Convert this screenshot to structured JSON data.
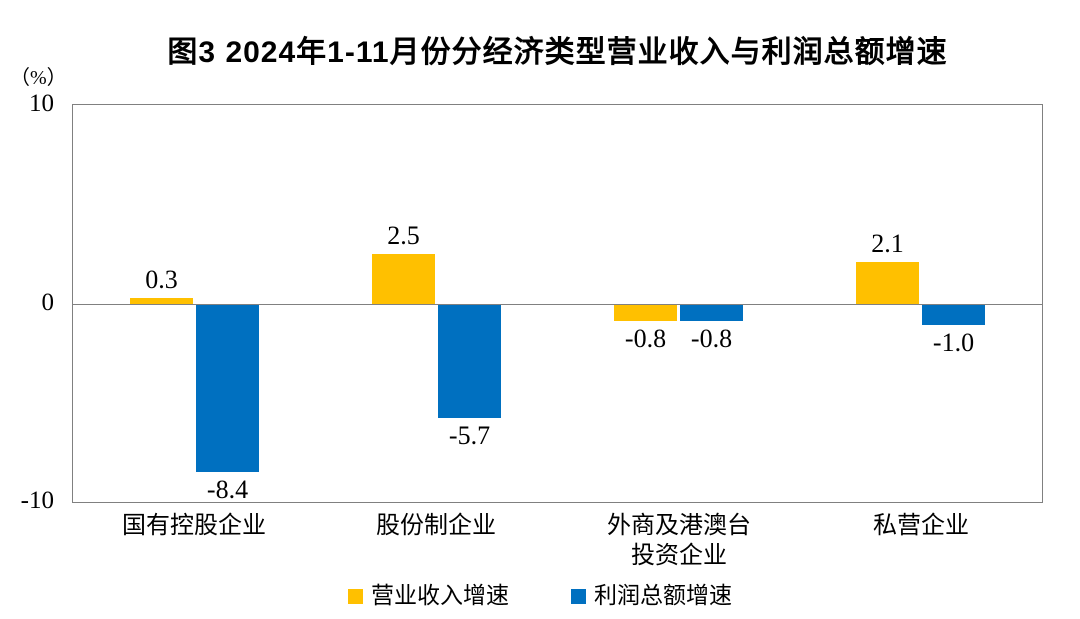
{
  "chart_data": {
    "type": "bar",
    "title": "图3 2024年1-11月份分经济类型营业收入与利润总额增速",
    "unit_label": "（%）",
    "categories": [
      "国有控股企业",
      "股份制企业",
      "外商及港澳台投资企业",
      "私营企业"
    ],
    "categories_display": [
      [
        "国有控股企业"
      ],
      [
        "股份制企业"
      ],
      [
        "外商及港澳台",
        "投资企业"
      ],
      [
        "私营企业"
      ]
    ],
    "series": [
      {
        "name": "营业收入增速",
        "color": "#FFC000",
        "values": [
          0.3,
          2.5,
          -0.8,
          2.1
        ],
        "labels": [
          "0.3",
          "2.5",
          "-0.8",
          "2.1"
        ]
      },
      {
        "name": "利润总额增速",
        "color": "#0070C0",
        "values": [
          -8.4,
          -5.7,
          -0.8,
          -1.0
        ],
        "labels": [
          "-8.4",
          "-5.7",
          "-0.8",
          "-1.0"
        ]
      }
    ],
    "ylim": [
      -10,
      10
    ],
    "yticks": [
      "10",
      "0",
      "-10"
    ],
    "ytick_values": [
      10,
      0,
      -10
    ],
    "grid": false,
    "legend_position": "bottom",
    "axis_color": "#808080",
    "background_color": "#FFFFFF",
    "text_color": "#000000"
  }
}
